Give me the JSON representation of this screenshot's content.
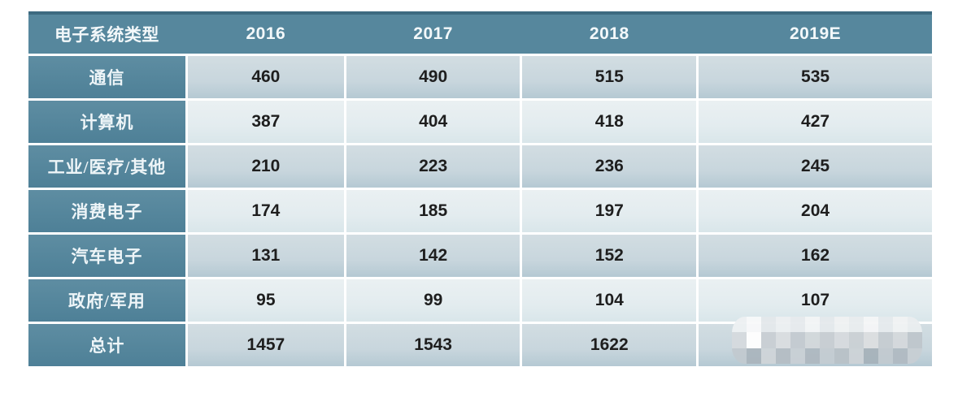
{
  "chart_data": {
    "type": "table",
    "title": "",
    "columns": [
      "电子系统类型",
      "2016",
      "2017",
      "2018",
      "2019E"
    ],
    "rows": [
      {
        "label": "通信",
        "values": [
          "460",
          "490",
          "515",
          "535"
        ]
      },
      {
        "label": "计算机",
        "values": [
          "387",
          "404",
          "418",
          "427"
        ]
      },
      {
        "label": "工业/医疗/其他",
        "values": [
          "210",
          "223",
          "236",
          "245"
        ]
      },
      {
        "label": "消费电子",
        "values": [
          "174",
          "185",
          "197",
          "204"
        ]
      },
      {
        "label": "汽车电子",
        "values": [
          "131",
          "142",
          "152",
          "162"
        ]
      },
      {
        "label": "政府/军用",
        "values": [
          "95",
          "99",
          "104",
          "107"
        ]
      },
      {
        "label": "总计",
        "values": [
          "1457",
          "1543",
          "1622",
          null
        ]
      }
    ],
    "notes": "2019E value of 总计 row is hidden by a pixelated watermark blur"
  },
  "colors": {
    "header_teal": "#56879d",
    "header_top_edge": "#3d6a80",
    "label_column_teal": "#55869c",
    "row_odd": "#c8d6dd",
    "row_even": "#e3ecef",
    "separator": "#ffffff",
    "value_text": "#1e1e1e",
    "header_text": "#f3f8fa"
  },
  "watermark": {
    "type": "pixelated-mosaic",
    "pixels": [
      "#eef1f3",
      "#f8f9fa",
      "#e4e9ec",
      "#edf0f2",
      "#e7ebee",
      "#f3f5f6",
      "#e5eaed",
      "#f0f2f3",
      "#e9edef",
      "#f5f6f7",
      "#e6ebee",
      "#f1f3f4",
      "#eaeef0",
      "#d6dbde",
      "#ffffff",
      "#c9cfd4",
      "#dadee1",
      "#c4cbd1",
      "#d3d8db",
      "#c8ced3",
      "#d7dbde",
      "#cbd1d5",
      "#dcdfe1",
      "#c6cdd2",
      "#d5d9dc",
      "#bfc7cd",
      "#c2cad0",
      "#abb6be",
      "#cfd5d9",
      "#b5bec5",
      "#c9d0d5",
      "#afb9c1",
      "#c4ccd2",
      "#b9c2c8",
      "#cdd3d7",
      "#a7b3bb",
      "#c2cad0",
      "#b1bbc3",
      "#c8cfd4"
    ]
  }
}
